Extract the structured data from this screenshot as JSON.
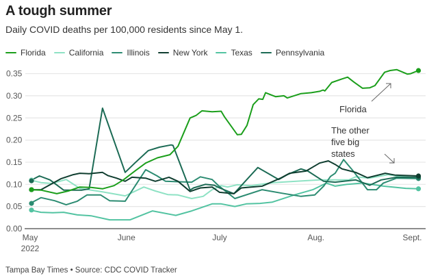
{
  "header": {
    "title": "A tough summer",
    "subtitle": "Daily COVID deaths per 100,000 residents since May 1."
  },
  "footer": {
    "credit": "Tampa Bay Times • Source: CDC COVID Tracker"
  },
  "chart_data": {
    "type": "line",
    "title": "A tough summer",
    "subtitle": "Daily COVID deaths per 100,000 residents since May 1.",
    "xlabel": "",
    "ylabel": "",
    "x_unit": "days since May 1, 2022",
    "x_ticks": [
      {
        "day": 0,
        "label": "May",
        "sublabel": "2022"
      },
      {
        "day": 31,
        "label": "June"
      },
      {
        "day": 61,
        "label": "July"
      },
      {
        "day": 92,
        "label": "Aug."
      },
      {
        "day": 123,
        "label": "Sept."
      }
    ],
    "xlim": [
      0,
      125
    ],
    "ylim": [
      0,
      0.37
    ],
    "y_ticks": [
      {
        "value": 0.0,
        "label": "0.00"
      },
      {
        "value": 0.05,
        "label": "0.05"
      },
      {
        "value": 0.1,
        "label": "0.10"
      },
      {
        "value": 0.15,
        "label": "0.15"
      },
      {
        "value": 0.2,
        "label": "0.20"
      },
      {
        "value": 0.25,
        "label": "0.25"
      },
      {
        "value": 0.3,
        "label": "0.30"
      },
      {
        "value": 0.35,
        "label": "0.35"
      }
    ],
    "grid": true,
    "legend_position": "top-left",
    "series": [
      {
        "name": "Florida",
        "color": "#1a9e1a",
        "points": [
          [
            0,
            0.088
          ],
          [
            3.5,
            0.087
          ],
          [
            8.6,
            0.079
          ],
          [
            12.3,
            0.085
          ],
          [
            16,
            0.094
          ],
          [
            19.6,
            0.093
          ],
          [
            23.3,
            0.09
          ],
          [
            27,
            0.097
          ],
          [
            30,
            0.11
          ],
          [
            33.7,
            0.13
          ],
          [
            37.2,
            0.148
          ],
          [
            41,
            0.16
          ],
          [
            45,
            0.167
          ],
          [
            47.6,
            0.186
          ],
          [
            51.5,
            0.25
          ],
          [
            53.5,
            0.256
          ],
          [
            55.3,
            0.266
          ],
          [
            58.6,
            0.264
          ],
          [
            61.5,
            0.265
          ],
          [
            62.5,
            0.253
          ],
          [
            66.7,
            0.212
          ],
          [
            68,
            0.213
          ],
          [
            69.8,
            0.233
          ],
          [
            71.8,
            0.28
          ],
          [
            73.6,
            0.293
          ],
          [
            74.9,
            0.292
          ],
          [
            75.8,
            0.307
          ],
          [
            79,
            0.298
          ],
          [
            81.7,
            0.3
          ],
          [
            82.8,
            0.295
          ],
          [
            87.2,
            0.305
          ],
          [
            90.5,
            0.307
          ],
          [
            93.2,
            0.31
          ],
          [
            94.3,
            0.313
          ],
          [
            94.9,
            0.311
          ],
          [
            97.1,
            0.33
          ],
          [
            100.4,
            0.338
          ],
          [
            102.2,
            0.342
          ],
          [
            104.2,
            0.331
          ],
          [
            107,
            0.317
          ],
          [
            109.3,
            0.318
          ],
          [
            111,
            0.323
          ],
          [
            114.1,
            0.353
          ],
          [
            115.9,
            0.357
          ],
          [
            118,
            0.359
          ],
          [
            121.4,
            0.349
          ],
          [
            122.5,
            0.35
          ],
          [
            125,
            0.357
          ]
        ]
      },
      {
        "name": "California",
        "color": "#8ee2c4",
        "points": [
          [
            0,
            0.11
          ],
          [
            3.5,
            0.104
          ],
          [
            7,
            0.102
          ],
          [
            11.6,
            0.111
          ],
          [
            16,
            0.091
          ],
          [
            23.3,
            0.083
          ],
          [
            30.6,
            0.074
          ],
          [
            33.3,
            0.083
          ],
          [
            36.6,
            0.094
          ],
          [
            40.3,
            0.085
          ],
          [
            44.3,
            0.077
          ],
          [
            47.6,
            0.076
          ],
          [
            52,
            0.068
          ],
          [
            55.7,
            0.073
          ],
          [
            58.6,
            0.088
          ],
          [
            61.5,
            0.097
          ],
          [
            63.6,
            0.094
          ],
          [
            66.7,
            0.099
          ],
          [
            71.2,
            0.097
          ],
          [
            78.4,
            0.104
          ],
          [
            85.7,
            0.107
          ],
          [
            93.2,
            0.11
          ],
          [
            97.6,
            0.11
          ],
          [
            102.6,
            0.11
          ],
          [
            104.8,
            0.117
          ],
          [
            109.3,
            0.114
          ],
          [
            115.2,
            0.122
          ],
          [
            118,
            0.119
          ],
          [
            125,
            0.114
          ]
        ]
      },
      {
        "name": "Illinois",
        "color": "#2b8b71",
        "points": [
          [
            0,
            0.057
          ],
          [
            3.5,
            0.07
          ],
          [
            7.9,
            0.063
          ],
          [
            11.6,
            0.054
          ],
          [
            15.2,
            0.062
          ],
          [
            18.3,
            0.076
          ],
          [
            22.7,
            0.076
          ],
          [
            25.6,
            0.063
          ],
          [
            30.6,
            0.062
          ],
          [
            37.2,
            0.133
          ],
          [
            40.9,
            0.119
          ],
          [
            43.6,
            0.107
          ],
          [
            52,
            0.105
          ],
          [
            54.8,
            0.117
          ],
          [
            58.6,
            0.111
          ],
          [
            60.5,
            0.098
          ],
          [
            65.9,
            0.068
          ],
          [
            74.7,
            0.088
          ],
          [
            81,
            0.08
          ],
          [
            87.2,
            0.073
          ],
          [
            91.6,
            0.076
          ],
          [
            94.5,
            0.096
          ],
          [
            96.7,
            0.118
          ],
          [
            98.2,
            0.125
          ],
          [
            100.9,
            0.156
          ],
          [
            104,
            0.13
          ],
          [
            108.6,
            0.088
          ],
          [
            111.5,
            0.088
          ],
          [
            113.7,
            0.103
          ],
          [
            118,
            0.114
          ],
          [
            125,
            0.113
          ]
        ]
      },
      {
        "name": "New York",
        "color": "#0f3d2f",
        "points": [
          [
            0,
            0.088
          ],
          [
            3.5,
            0.088
          ],
          [
            6.4,
            0.099
          ],
          [
            10,
            0.113
          ],
          [
            13.9,
            0.122
          ],
          [
            16,
            0.125
          ],
          [
            19,
            0.124
          ],
          [
            23.3,
            0.127
          ],
          [
            25,
            0.12
          ],
          [
            27.8,
            0.114
          ],
          [
            30.6,
            0.107
          ],
          [
            32.8,
            0.116
          ],
          [
            37.2,
            0.114
          ],
          [
            40.3,
            0.107
          ],
          [
            44.7,
            0.116
          ],
          [
            47.6,
            0.107
          ],
          [
            51.5,
            0.084
          ],
          [
            54.8,
            0.092
          ],
          [
            58.6,
            0.094
          ],
          [
            61,
            0.082
          ],
          [
            65.6,
            0.079
          ],
          [
            68,
            0.092
          ],
          [
            74.7,
            0.096
          ],
          [
            80.6,
            0.114
          ],
          [
            83.5,
            0.125
          ],
          [
            88.8,
            0.13
          ],
          [
            93.2,
            0.148
          ],
          [
            96,
            0.153
          ],
          [
            98.2,
            0.145
          ],
          [
            100.4,
            0.135
          ],
          [
            104.8,
            0.127
          ],
          [
            108.6,
            0.115
          ],
          [
            111.5,
            0.12
          ],
          [
            114.3,
            0.125
          ],
          [
            117.4,
            0.121
          ],
          [
            125,
            0.119
          ]
        ]
      },
      {
        "name": "Texas",
        "color": "#52c3a1",
        "points": [
          [
            0,
            0.042
          ],
          [
            3.5,
            0.037
          ],
          [
            7.3,
            0.036
          ],
          [
            10.8,
            0.037
          ],
          [
            15.2,
            0.031
          ],
          [
            19.6,
            0.029
          ],
          [
            25.6,
            0.02
          ],
          [
            32.2,
            0.02
          ],
          [
            39.4,
            0.04
          ],
          [
            46.9,
            0.03
          ],
          [
            52,
            0.04
          ],
          [
            58.6,
            0.056
          ],
          [
            61.5,
            0.056
          ],
          [
            65.9,
            0.05
          ],
          [
            69.6,
            0.056
          ],
          [
            74,
            0.057
          ],
          [
            78,
            0.06
          ],
          [
            85,
            0.076
          ],
          [
            91,
            0.088
          ],
          [
            95.4,
            0.103
          ],
          [
            98.2,
            0.096
          ],
          [
            102,
            0.1
          ],
          [
            107,
            0.103
          ],
          [
            113.7,
            0.096
          ],
          [
            120.9,
            0.091
          ],
          [
            125,
            0.09
          ]
        ]
      },
      {
        "name": "Pennsylvania",
        "color": "#1b6a54",
        "points": [
          [
            0,
            0.108
          ],
          [
            3,
            0.119
          ],
          [
            6.4,
            0.11
          ],
          [
            10.8,
            0.087
          ],
          [
            16.7,
            0.087
          ],
          [
            19,
            0.09
          ],
          [
            23.3,
            0.272
          ],
          [
            30.6,
            0.127
          ],
          [
            33.7,
            0.148
          ],
          [
            38,
            0.176
          ],
          [
            41.6,
            0.184
          ],
          [
            45.4,
            0.189
          ],
          [
            46,
            0.188
          ],
          [
            51.5,
            0.087
          ],
          [
            52.6,
            0.092
          ],
          [
            56.4,
            0.1
          ],
          [
            59.3,
            0.098
          ],
          [
            61,
            0.092
          ],
          [
            65.6,
            0.079
          ],
          [
            73.3,
            0.138
          ],
          [
            80,
            0.111
          ],
          [
            82.8,
            0.122
          ],
          [
            87.2,
            0.135
          ],
          [
            89.4,
            0.13
          ],
          [
            94.5,
            0.107
          ],
          [
            98.2,
            0.105
          ],
          [
            104.8,
            0.11
          ],
          [
            109.3,
            0.098
          ],
          [
            113,
            0.11
          ],
          [
            118,
            0.116
          ],
          [
            125,
            0.116
          ]
        ]
      }
    ],
    "annotations": [
      {
        "target": "Florida",
        "lines": [
          "Florida"
        ]
      },
      {
        "target": "other five states",
        "lines": [
          "The other",
          "five big",
          "states"
        ]
      }
    ]
  }
}
